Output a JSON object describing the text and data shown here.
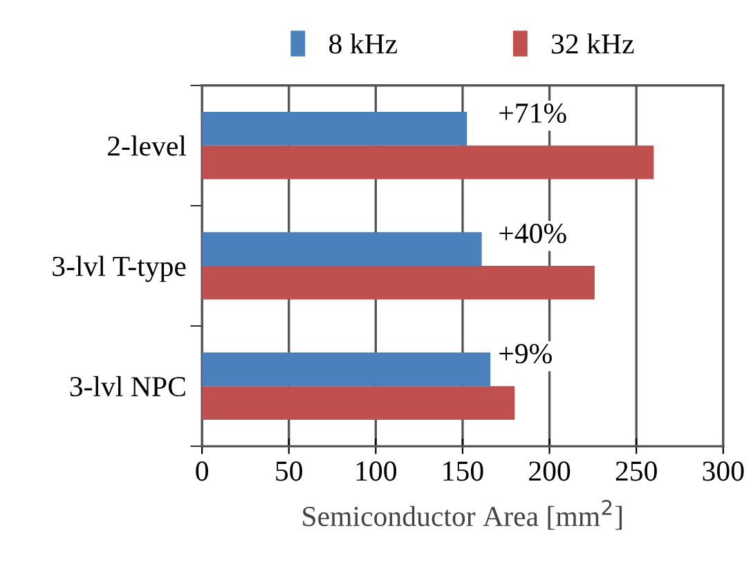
{
  "chart_data": {
    "type": "bar",
    "orientation": "horizontal",
    "categories": [
      "2-level",
      "3-lvl T-type",
      "3-lvl NPC"
    ],
    "series": [
      {
        "name": "8 kHz",
        "color": "#4a81bd",
        "values": [
          152.5,
          161,
          166
        ]
      },
      {
        "name": "32 kHz",
        "color": "#c0504d",
        "values": [
          260,
          226,
          180
        ]
      }
    ],
    "xlabel": "Semiconductor Area [mm$^{2}$]",
    "xlim": [
      0,
      300
    ],
    "xticks": [
      0,
      50,
      100,
      150,
      200,
      250,
      300
    ],
    "grid": "x",
    "legend": "top",
    "annotations": [
      "+71%",
      "+40%",
      "+9%"
    ]
  }
}
